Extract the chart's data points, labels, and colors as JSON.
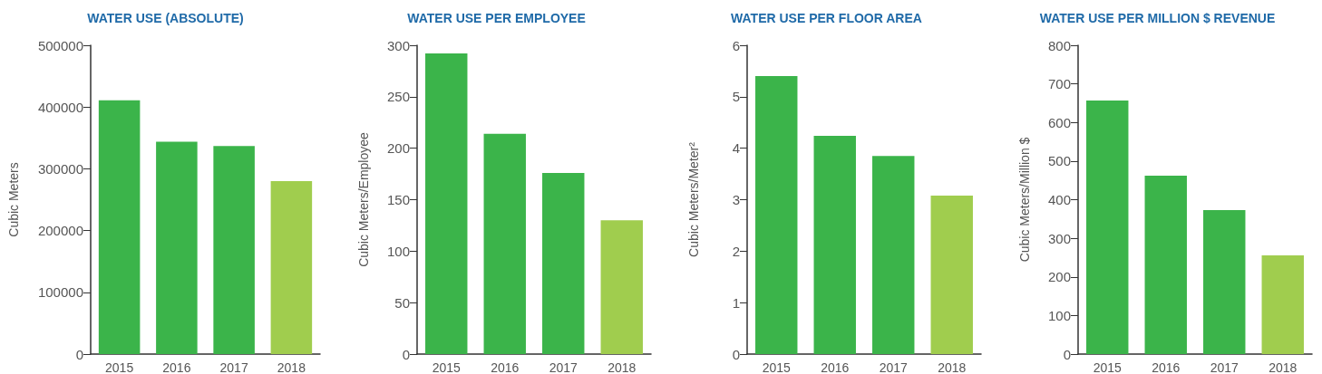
{
  "chart_data": [
    {
      "type": "bar",
      "title": "WATER USE (ABSOLUTE)",
      "ylabel": "Cubic Meters",
      "categories": [
        "2015",
        "2016",
        "2017",
        "2018"
      ],
      "values": [
        411000,
        344000,
        337000,
        280000
      ],
      "colors": [
        "#3bb44a",
        "#3bb44a",
        "#3bb44a",
        "#a0cd4e"
      ],
      "ylim": [
        0,
        500000
      ],
      "yticks": [
        0,
        100000,
        200000,
        300000,
        400000,
        500000
      ],
      "grid": false
    },
    {
      "type": "bar",
      "title": "WATER USE PER EMPLOYEE",
      "ylabel": "Cubic Meters/Employee",
      "categories": [
        "2015",
        "2016",
        "2017",
        "2018"
      ],
      "values": [
        292,
        214,
        176,
        130
      ],
      "colors": [
        "#3bb44a",
        "#3bb44a",
        "#3bb44a",
        "#a0cd4e"
      ],
      "ylim": [
        0,
        300
      ],
      "yticks": [
        0,
        50,
        100,
        150,
        200,
        250,
        300
      ],
      "grid": false
    },
    {
      "type": "bar",
      "title": "WATER USE PER FLOOR AREA",
      "ylabel": "Cubic Meters/Meter²",
      "categories": [
        "2015",
        "2016",
        "2017",
        "2018"
      ],
      "values": [
        5.4,
        4.24,
        3.85,
        3.08
      ],
      "colors": [
        "#3bb44a",
        "#3bb44a",
        "#3bb44a",
        "#a0cd4e"
      ],
      "ylim": [
        0,
        6
      ],
      "yticks": [
        0,
        1,
        2,
        3,
        4,
        5,
        6
      ],
      "grid": false
    },
    {
      "type": "bar",
      "title": "WATER USE PER MILLION $ REVENUE",
      "ylabel": "Cubic Meters/Million $",
      "categories": [
        "2015",
        "2016",
        "2017",
        "2018"
      ],
      "values": [
        657,
        462,
        373,
        256
      ],
      "colors": [
        "#3bb44a",
        "#3bb44a",
        "#3bb44a",
        "#a0cd4e"
      ],
      "ylim": [
        0,
        800
      ],
      "yticks": [
        0,
        100,
        200,
        300,
        400,
        500,
        600,
        700,
        800
      ],
      "grid": false
    }
  ]
}
